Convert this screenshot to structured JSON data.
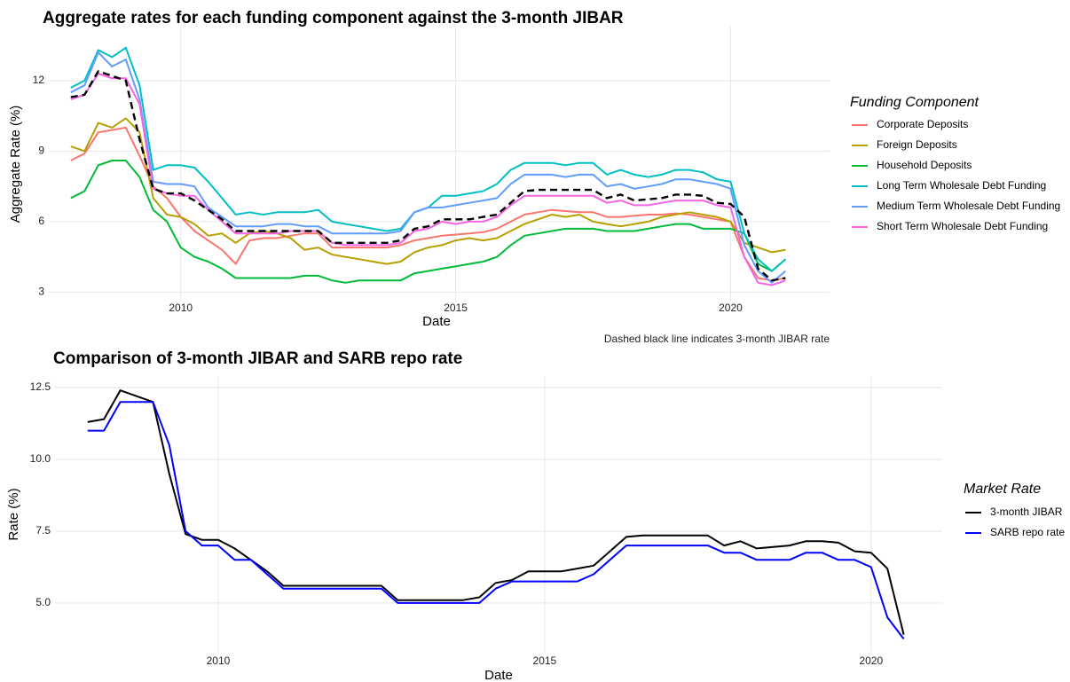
{
  "chart_data": [
    {
      "type": "line",
      "title": "Aggregate rates for each funding component against the 3-month JIBAR",
      "x_label": "Date",
      "y_label": "Aggregate Rate (%)",
      "legend_title": "Funding Component",
      "caption": "Dashed black line indicates 3-month JIBAR rate",
      "xlim": [
        2007.6,
        2021.8
      ],
      "xticks": [
        2010,
        2015,
        2020
      ],
      "ylim": [
        2.6,
        14.3
      ],
      "yticks": [
        3,
        6,
        9,
        12
      ],
      "grid": true,
      "legend": "right",
      "x": [
        2008,
        2008.25,
        2008.5,
        2008.75,
        2009,
        2009.25,
        2009.5,
        2009.75,
        2010,
        2010.25,
        2010.5,
        2010.75,
        2011,
        2011.25,
        2011.5,
        2011.75,
        2012,
        2012.25,
        2012.5,
        2012.75,
        2013,
        2013.25,
        2013.5,
        2013.75,
        2014,
        2014.25,
        2014.5,
        2014.75,
        2015,
        2015.25,
        2015.5,
        2015.75,
        2016,
        2016.25,
        2016.5,
        2016.75,
        2017,
        2017.25,
        2017.5,
        2017.75,
        2018,
        2018.25,
        2018.5,
        2018.75,
        2019,
        2019.25,
        2019.5,
        2019.75,
        2020,
        2020.25,
        2020.5,
        2020.75,
        2021
      ],
      "reference": {
        "color": "#000000",
        "dashed": true,
        "values": [
          11.3,
          11.4,
          12.4,
          12.2,
          12.0,
          9.5,
          7.4,
          7.2,
          7.2,
          6.9,
          6.5,
          6.1,
          5.6,
          5.6,
          5.6,
          5.6,
          5.6,
          5.6,
          5.6,
          5.1,
          5.1,
          5.1,
          5.1,
          5.1,
          5.2,
          5.7,
          5.8,
          6.1,
          6.1,
          6.1,
          6.2,
          6.3,
          6.8,
          7.3,
          7.35,
          7.35,
          7.35,
          7.35,
          7.35,
          7.0,
          7.15,
          6.9,
          6.95,
          7.0,
          7.15,
          7.15,
          7.1,
          6.8,
          6.75,
          6.2,
          4.0,
          3.5,
          3.6
        ]
      },
      "series": [
        {
          "name": "Corporate Deposits",
          "color": "#F8766D",
          "values": [
            8.6,
            8.9,
            9.8,
            9.9,
            10.0,
            8.8,
            7.5,
            7.0,
            6.2,
            5.6,
            5.2,
            4.8,
            4.2,
            5.2,
            5.3,
            5.3,
            5.4,
            5.5,
            5.5,
            4.9,
            4.9,
            4.9,
            4.9,
            4.9,
            5.0,
            5.2,
            5.3,
            5.4,
            5.45,
            5.5,
            5.55,
            5.7,
            6.0,
            6.3,
            6.4,
            6.5,
            6.45,
            6.4,
            6.4,
            6.2,
            6.2,
            6.25,
            6.3,
            6.3,
            6.35,
            6.3,
            6.2,
            6.1,
            6.0,
            4.5,
            3.6,
            3.5,
            3.6
          ]
        },
        {
          "name": "Foreign Deposits",
          "color": "#B79F00",
          "values": [
            9.2,
            9.0,
            10.2,
            10.0,
            10.4,
            9.8,
            7.0,
            6.3,
            6.2,
            5.9,
            5.4,
            5.5,
            5.1,
            5.5,
            5.6,
            5.5,
            5.3,
            4.8,
            4.9,
            4.6,
            4.5,
            4.4,
            4.3,
            4.2,
            4.3,
            4.7,
            4.9,
            5.0,
            5.2,
            5.3,
            5.2,
            5.3,
            5.6,
            5.9,
            6.1,
            6.3,
            6.2,
            6.3,
            6.0,
            5.9,
            5.8,
            5.9,
            6.0,
            6.2,
            6.3,
            6.4,
            6.3,
            6.2,
            6.0,
            5.1,
            4.9,
            4.7,
            4.8
          ]
        },
        {
          "name": "Household Deposits",
          "color": "#00BA38",
          "values": [
            7.0,
            7.3,
            8.4,
            8.6,
            8.6,
            7.9,
            6.5,
            6.0,
            4.9,
            4.5,
            4.3,
            4.0,
            3.6,
            3.6,
            3.6,
            3.6,
            3.6,
            3.7,
            3.7,
            3.5,
            3.4,
            3.5,
            3.5,
            3.5,
            3.5,
            3.8,
            3.9,
            4.0,
            4.1,
            4.2,
            4.3,
            4.5,
            5.0,
            5.4,
            5.5,
            5.6,
            5.7,
            5.7,
            5.7,
            5.6,
            5.6,
            5.6,
            5.7,
            5.8,
            5.9,
            5.9,
            5.7,
            5.7,
            5.7,
            5.5,
            4.2,
            3.9,
            4.4
          ]
        },
        {
          "name": "Long Term Wholesale Debt Funding",
          "color": "#00BFC4",
          "values": [
            11.7,
            12.0,
            13.3,
            13.0,
            13.4,
            11.8,
            8.2,
            8.4,
            8.4,
            8.3,
            7.7,
            7.0,
            6.3,
            6.4,
            6.3,
            6.4,
            6.4,
            6.4,
            6.5,
            6.0,
            5.9,
            5.8,
            5.7,
            5.6,
            5.7,
            6.4,
            6.6,
            7.1,
            7.1,
            7.2,
            7.3,
            7.6,
            8.2,
            8.5,
            8.5,
            8.5,
            8.4,
            8.5,
            8.5,
            8.0,
            8.2,
            8.0,
            7.9,
            8.0,
            8.2,
            8.2,
            8.1,
            7.8,
            7.7,
            5.5,
            4.4,
            3.9,
            4.4
          ]
        },
        {
          "name": "Medium Term Wholesale Debt Funding",
          "color": "#619CFF",
          "values": [
            11.5,
            11.8,
            13.2,
            12.6,
            12.9,
            11.2,
            7.7,
            7.6,
            7.6,
            7.5,
            6.6,
            6.2,
            5.8,
            5.8,
            5.8,
            5.9,
            5.9,
            5.8,
            5.8,
            5.5,
            5.5,
            5.5,
            5.5,
            5.5,
            5.6,
            6.4,
            6.6,
            6.6,
            6.7,
            6.8,
            6.9,
            7.0,
            7.6,
            8.0,
            8.0,
            8.0,
            7.9,
            8.0,
            8.0,
            7.5,
            7.6,
            7.4,
            7.5,
            7.6,
            7.8,
            7.8,
            7.7,
            7.6,
            7.4,
            5.0,
            3.9,
            3.4,
            3.9
          ]
        },
        {
          "name": "Short Term Wholesale Debt Funding",
          "color": "#F564E3",
          "values": [
            11.2,
            11.4,
            12.3,
            12.1,
            12.1,
            11.0,
            7.4,
            7.2,
            7.1,
            7.1,
            6.5,
            6.0,
            5.5,
            5.5,
            5.5,
            5.5,
            5.6,
            5.6,
            5.6,
            5.1,
            5.0,
            5.0,
            5.0,
            5.0,
            5.1,
            5.6,
            5.7,
            6.0,
            5.9,
            6.0,
            6.0,
            6.2,
            6.7,
            7.1,
            7.1,
            7.1,
            7.1,
            7.1,
            7.1,
            6.8,
            6.9,
            6.7,
            6.7,
            6.8,
            6.9,
            6.9,
            6.9,
            6.7,
            6.6,
            4.5,
            3.4,
            3.3,
            3.5
          ]
        }
      ]
    },
    {
      "type": "line",
      "title": "Comparison of 3-month JIBAR and SARB repo rate",
      "x_label": "Date",
      "y_label": "Rate (%)",
      "legend_title": "Market Rate",
      "xlim": [
        2007.5,
        2021.09
      ],
      "xticks": [
        2010,
        2015,
        2020
      ],
      "ylim": [
        3.3,
        12.87
      ],
      "yticks": [
        {
          "value": 5,
          "label": "5.0"
        },
        7.5,
        {
          "value": 10,
          "label": "10.0"
        },
        12.5
      ],
      "grid": true,
      "legend": "right",
      "x": [
        2008,
        2008.25,
        2008.5,
        2008.75,
        2009,
        2009.25,
        2009.5,
        2009.75,
        2010,
        2010.25,
        2010.5,
        2010.75,
        2011,
        2011.25,
        2011.5,
        2011.75,
        2012,
        2012.25,
        2012.5,
        2012.75,
        2013,
        2013.25,
        2013.5,
        2013.75,
        2014,
        2014.25,
        2014.5,
        2014.75,
        2015,
        2015.25,
        2015.5,
        2015.75,
        2016,
        2016.25,
        2016.5,
        2016.75,
        2017,
        2017.25,
        2017.5,
        2017.75,
        2018,
        2018.25,
        2018.5,
        2018.75,
        2019,
        2019.25,
        2019.5,
        2019.75,
        2020,
        2020.25,
        2020.5
      ],
      "series": [
        {
          "name": "3-month JIBAR",
          "color": "#000000",
          "values": [
            11.3,
            11.4,
            12.4,
            12.2,
            12.0,
            9.5,
            7.4,
            7.2,
            7.2,
            6.9,
            6.5,
            6.1,
            5.6,
            5.6,
            5.6,
            5.6,
            5.6,
            5.6,
            5.6,
            5.1,
            5.1,
            5.1,
            5.1,
            5.1,
            5.2,
            5.7,
            5.8,
            6.1,
            6.1,
            6.1,
            6.2,
            6.3,
            6.8,
            7.3,
            7.35,
            7.35,
            7.35,
            7.35,
            7.35,
            7.0,
            7.15,
            6.9,
            6.95,
            7.0,
            7.15,
            7.15,
            7.1,
            6.8,
            6.75,
            6.2,
            3.9
          ]
        },
        {
          "name": "SARB repo rate",
          "color": "#0000FF",
          "values": [
            11.0,
            11.0,
            12.0,
            12.0,
            12.0,
            10.5,
            7.5,
            7.0,
            7.0,
            6.5,
            6.5,
            6.0,
            5.5,
            5.5,
            5.5,
            5.5,
            5.5,
            5.5,
            5.5,
            5.0,
            5.0,
            5.0,
            5.0,
            5.0,
            5.0,
            5.5,
            5.75,
            5.75,
            5.75,
            5.75,
            5.75,
            6.0,
            6.5,
            7.0,
            7.0,
            7.0,
            7.0,
            7.0,
            7.0,
            6.75,
            6.75,
            6.5,
            6.5,
            6.5,
            6.75,
            6.75,
            6.5,
            6.5,
            6.25,
            4.5,
            3.75
          ]
        }
      ]
    }
  ]
}
